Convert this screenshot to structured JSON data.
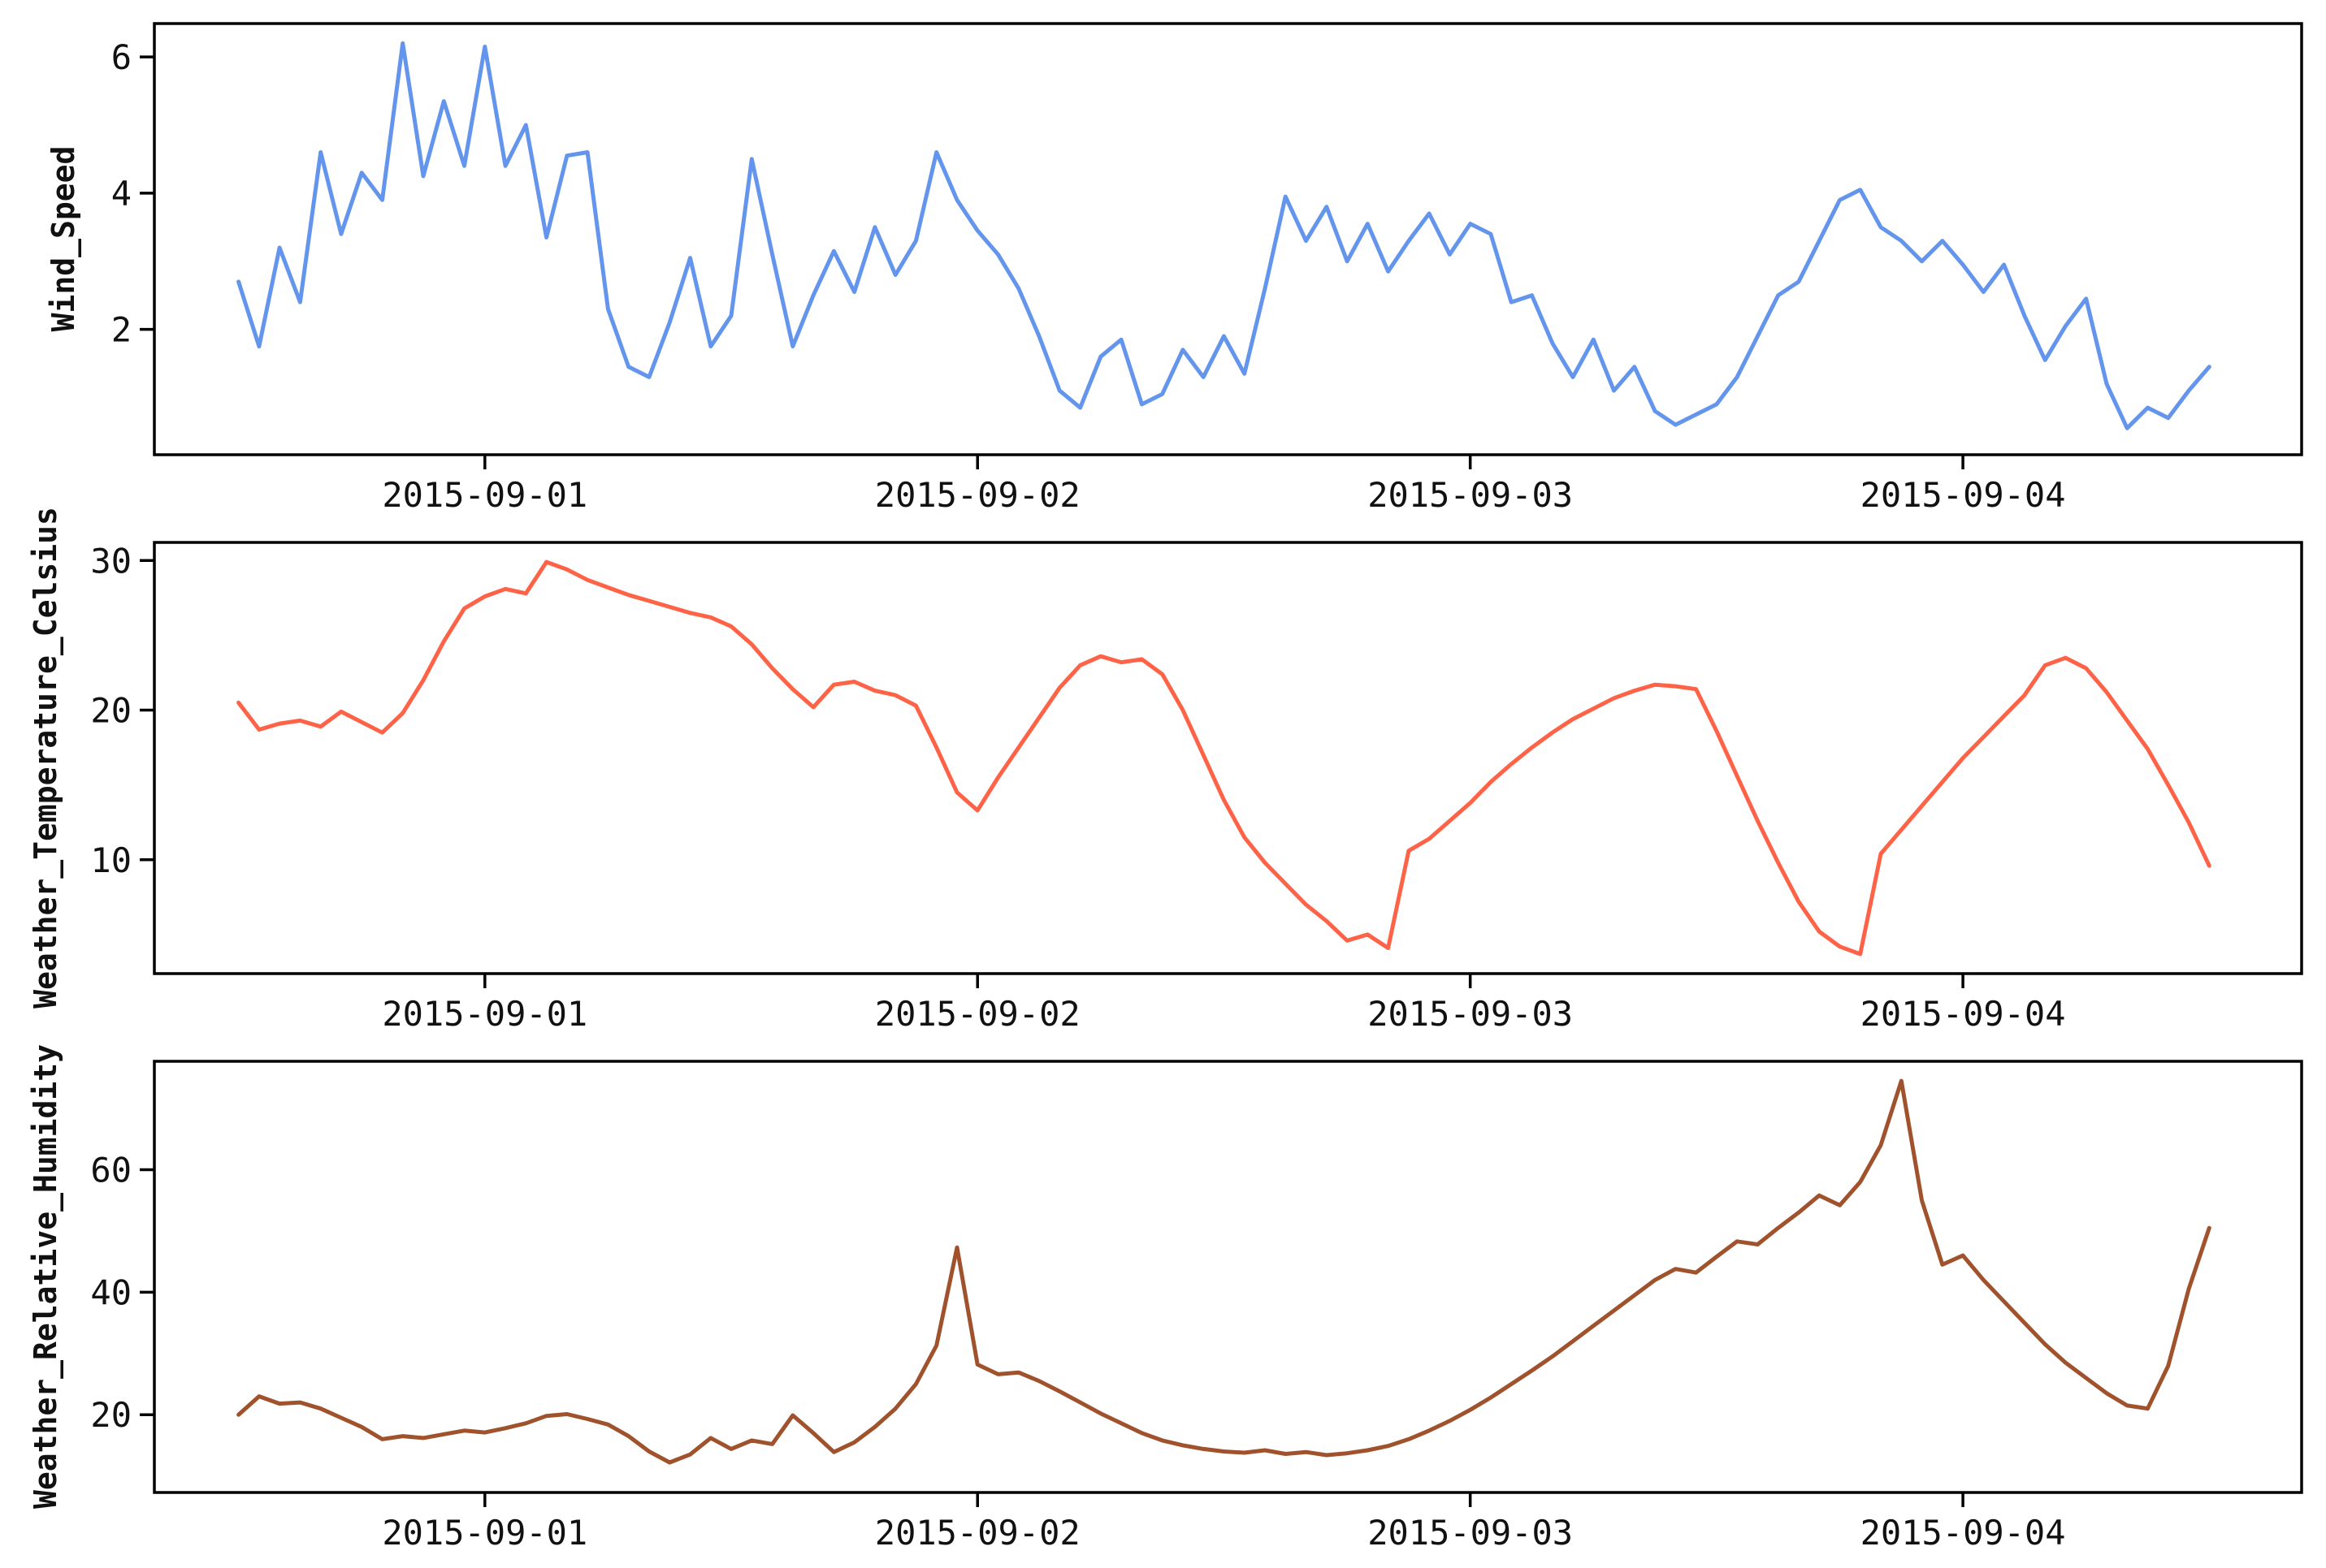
{
  "figure": {
    "background": "#ffffff",
    "spine_color": "#000000",
    "tick_label_color": "#111111"
  },
  "x_axis": {
    "tick_labels": [
      "2015-09-01",
      "2015-09-02",
      "2015-09-03",
      "2015-09-04"
    ],
    "tick_hours": [
      12,
      36,
      60,
      84
    ],
    "xlim_hours": [
      -4.1,
      100.5
    ],
    "start_hour": 0,
    "step_hours": 1
  },
  "chart_data": [
    {
      "type": "line",
      "title": "",
      "xlabel": "",
      "ylabel": "Wind_Speed",
      "color": "#6495ed",
      "ylim": [
        0.16,
        6.49
      ],
      "yticks": [
        2,
        4,
        6
      ],
      "x_tick_labels": [
        "2015-09-01",
        "2015-09-02",
        "2015-09-03",
        "2015-09-04"
      ],
      "values": [
        2.7,
        1.75,
        3.2,
        2.4,
        4.6,
        3.4,
        4.3,
        3.9,
        6.2,
        4.25,
        5.35,
        4.4,
        6.15,
        4.4,
        5.0,
        3.35,
        4.55,
        4.6,
        2.3,
        1.45,
        1.3,
        2.1,
        3.05,
        1.75,
        2.2,
        4.5,
        3.1,
        1.75,
        2.5,
        3.15,
        2.55,
        3.5,
        2.8,
        3.3,
        4.6,
        3.9,
        3.45,
        3.1,
        2.6,
        1.9,
        1.1,
        0.85,
        1.6,
        1.85,
        0.9,
        1.05,
        1.7,
        1.3,
        1.9,
        1.35,
        2.6,
        3.95,
        3.3,
        3.8,
        3.0,
        3.55,
        2.85,
        3.3,
        3.7,
        3.1,
        3.55,
        3.4,
        2.4,
        2.5,
        1.8,
        1.3,
        1.85,
        1.1,
        1.45,
        0.8,
        0.6,
        0.75,
        0.9,
        1.3,
        1.9,
        2.5,
        2.7,
        3.3,
        3.9,
        4.05,
        3.5,
        3.3,
        3.0,
        3.3,
        2.95,
        2.55,
        2.95,
        2.2,
        1.55,
        2.05,
        2.45,
        1.2,
        0.55,
        0.85,
        0.7,
        1.1,
        1.45
      ]
    },
    {
      "type": "line",
      "title": "",
      "xlabel": "",
      "ylabel": "Weather_Temperature_Celsius",
      "color": "#ff6347",
      "ylim": [
        2.39,
        31.21
      ],
      "yticks": [
        10,
        20,
        30
      ],
      "x_tick_labels": [
        "2015-09-01",
        "2015-09-02",
        "2015-09-03",
        "2015-09-04"
      ],
      "values": [
        20.5,
        18.7,
        19.1,
        19.3,
        18.9,
        19.9,
        19.2,
        18.5,
        19.8,
        22.0,
        24.6,
        26.8,
        27.6,
        28.1,
        27.8,
        29.9,
        29.4,
        28.7,
        28.2,
        27.7,
        27.3,
        26.9,
        26.5,
        26.2,
        25.6,
        24.4,
        22.8,
        21.4,
        20.2,
        21.7,
        21.9,
        21.3,
        21.0,
        20.3,
        17.5,
        14.5,
        13.3,
        15.5,
        17.5,
        19.5,
        21.5,
        23.0,
        23.6,
        23.2,
        23.4,
        22.4,
        20.0,
        17.0,
        14.0,
        11.5,
        9.8,
        8.4,
        7.0,
        5.9,
        4.6,
        5.0,
        4.1,
        10.6,
        11.4,
        12.6,
        13.8,
        15.2,
        16.4,
        17.5,
        18.5,
        19.4,
        20.1,
        20.8,
        21.3,
        21.7,
        21.6,
        21.4,
        18.6,
        15.6,
        12.6,
        9.8,
        7.2,
        5.2,
        4.2,
        3.7,
        10.4,
        12.0,
        13.6,
        15.2,
        16.8,
        18.2,
        19.6,
        21.0,
        23.0,
        23.5,
        22.8,
        21.2,
        19.3,
        17.4,
        15.0,
        12.5,
        9.6
      ]
    },
    {
      "type": "line",
      "title": "",
      "xlabel": "",
      "ylabel": "Weather_Relative_Humidity",
      "color": "#a0522d",
      "ylim": [
        7.3,
        77.7
      ],
      "yticks": [
        20,
        40,
        60
      ],
      "x_tick_labels": [
        "2015-09-01",
        "2015-09-02",
        "2015-09-03",
        "2015-09-04"
      ],
      "values": [
        20.0,
        23.0,
        21.8,
        22.0,
        21.0,
        19.5,
        18.0,
        16.0,
        16.5,
        16.2,
        16.8,
        17.4,
        17.1,
        17.8,
        18.6,
        19.8,
        20.1,
        19.3,
        18.4,
        16.5,
        14.0,
        12.2,
        13.5,
        16.2,
        14.4,
        15.8,
        15.2,
        19.9,
        17.0,
        13.9,
        15.5,
        18.0,
        21.0,
        25.0,
        31.3,
        47.3,
        28.2,
        26.6,
        26.9,
        25.5,
        23.8,
        22.0,
        20.2,
        18.6,
        17.0,
        15.8,
        15.0,
        14.4,
        14.0,
        13.8,
        14.2,
        13.6,
        13.9,
        13.4,
        13.7,
        14.2,
        14.9,
        16.0,
        17.4,
        19.0,
        20.8,
        22.8,
        25.0,
        27.2,
        29.5,
        32.0,
        34.5,
        37.0,
        39.5,
        42.0,
        43.8,
        43.2,
        45.8,
        48.3,
        47.8,
        50.5,
        53.0,
        55.8,
        54.2,
        58.0,
        64.0,
        74.5,
        55.0,
        44.5,
        46.0,
        42.0,
        38.5,
        35.0,
        31.5,
        28.5,
        26.0,
        23.5,
        21.5,
        21.0,
        28.0,
        40.5,
        50.5
      ]
    }
  ]
}
